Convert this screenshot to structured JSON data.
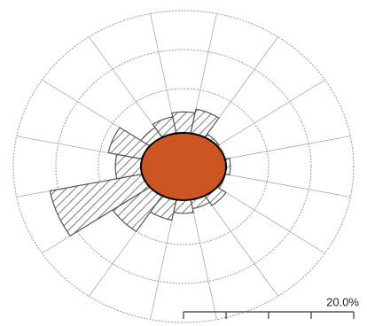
{
  "chart_data": {
    "type": "wind_rose",
    "values": [
      7,
      7.5,
      5,
      4,
      5.5,
      5,
      6,
      5.5,
      6,
      7,
      10,
      16,
      8,
      9,
      6,
      6.5
    ],
    "color": "#555555",
    "calm_color": "#cc5522",
    "rlim": [
      0,
      20
    ],
    "rticks": [
      5,
      10,
      15,
      20
    ],
    "scale_ticks": [
      0,
      5,
      10,
      15,
      20
    ],
    "scale_label": "20.0%"
  }
}
